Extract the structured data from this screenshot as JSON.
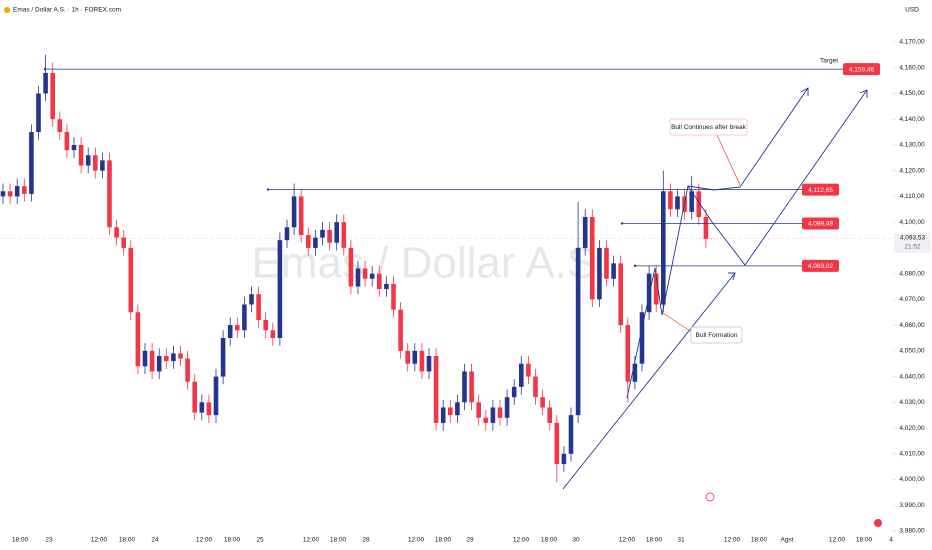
{
  "chart_data": {
    "type": "candlestick",
    "title": "Emas / Dollar A.S.",
    "header": "Emas / Dollar A.S. · 1h · FOREX.com",
    "currency": "USD",
    "up_color": "#24358f",
    "down_color": "#f23645",
    "open": [
      4110,
      4112,
      4110,
      4114,
      4111,
      4135,
      4150,
      4158,
      4140,
      4135,
      4128,
      4130,
      4122,
      4126,
      4120,
      4124,
      4098,
      4094,
      4090,
      4065,
      4044,
      4050,
      4042,
      4048,
      4046,
      4049,
      4047,
      4038,
      4026,
      4030,
      4025,
      4040,
      4055,
      4060,
      4058,
      4068,
      4072,
      4062,
      4058,
      4055,
      4093,
      4098,
      4110,
      4095,
      4090,
      4094,
      4097,
      4092,
      4100,
      4090,
      4075,
      4082,
      4078,
      4080,
      4074,
      4076,
      4066,
      4050,
      4045,
      4050,
      4042,
      4048,
      4022,
      4028,
      4025,
      4030,
      4042,
      4030,
      4024,
      4022,
      4028,
      4024,
      4032,
      4036,
      4045,
      4040,
      4032,
      4028,
      4022,
      4006,
      4010,
      4025,
      4090,
      4102,
      4070,
      4090,
      4078,
      4084,
      4060,
      4038,
      4045,
      4065,
      4080,
      4068,
      4112,
      4105,
      4110,
      4104,
      4112,
      4102
    ],
    "high": [
      4115,
      4115,
      4117,
      4117,
      4138,
      4153,
      4165,
      4162,
      4143,
      4138,
      4133,
      4133,
      4129,
      4129,
      4127,
      4127,
      4101,
      4097,
      4093,
      4068,
      4053,
      4053,
      4051,
      4051,
      4052,
      4052,
      4050,
      4041,
      4033,
      4033,
      4043,
      4058,
      4063,
      4063,
      4071,
      4075,
      4075,
      4065,
      4061,
      4096,
      4101,
      4115,
      4113,
      4098,
      4097,
      4100,
      4100,
      4103,
      4103,
      4093,
      4085,
      4085,
      4083,
      4083,
      4079,
      4079,
      4069,
      4053,
      4053,
      4053,
      4051,
      4051,
      4031,
      4031,
      4033,
      4045,
      4045,
      4033,
      4027,
      4031,
      4031,
      4035,
      4039,
      4048,
      4048,
      4043,
      4035,
      4031,
      4025,
      4013,
      4028,
      4108,
      4105,
      4105,
      4093,
      4093,
      4087,
      4087,
      4063,
      4048,
      4068,
      4083,
      4083,
      4120,
      4115,
      4113,
      4113,
      4118,
      4115,
      4105
    ],
    "low": [
      4107,
      4107,
      4107,
      4108,
      4108,
      4132,
      4147,
      4137,
      4132,
      4125,
      4125,
      4119,
      4119,
      4117,
      4117,
      4095,
      4091,
      4087,
      4062,
      4041,
      4041,
      4039,
      4039,
      4043,
      4043,
      4044,
      4035,
      4023,
      4023,
      4022,
      4022,
      4037,
      4052,
      4055,
      4055,
      4065,
      4059,
      4055,
      4052,
      4052,
      4090,
      4095,
      4092,
      4087,
      4087,
      4091,
      4089,
      4089,
      4087,
      4072,
      4072,
      4075,
      4075,
      4071,
      4071,
      4063,
      4047,
      4042,
      4042,
      4039,
      4039,
      4019,
      4019,
      4022,
      4022,
      4027,
      4027,
      4021,
      4019,
      4019,
      4021,
      4021,
      4029,
      4033,
      4037,
      4029,
      4025,
      4019,
      3999,
      4003,
      4007,
      4022,
      4087,
      4067,
      4067,
      4075,
      4075,
      4057,
      4030,
      4035,
      4042,
      4062,
      4065,
      4065,
      4102,
      4102,
      4101,
      4101,
      4099,
      4090
    ],
    "close": [
      4112,
      4110,
      4114,
      4111,
      4135,
      4150,
      4158,
      4140,
      4135,
      4128,
      4130,
      4122,
      4126,
      4120,
      4124,
      4098,
      4094,
      4090,
      4065,
      4044,
      4050,
      4042,
      4048,
      4046,
      4049,
      4047,
      4038,
      4026,
      4030,
      4025,
      4040,
      4055,
      4060,
      4058,
      4068,
      4072,
      4062,
      4058,
      4055,
      4093,
      4098,
      4110,
      4095,
      4090,
      4094,
      4097,
      4092,
      4100,
      4090,
      4075,
      4082,
      4078,
      4080,
      4074,
      4076,
      4066,
      4050,
      4045,
      4050,
      4042,
      4048,
      4022,
      4028,
      4025,
      4030,
      4042,
      4030,
      4024,
      4022,
      4028,
      4024,
      4032,
      4036,
      4045,
      4040,
      4032,
      4028,
      4022,
      4006,
      4010,
      4025,
      4090,
      4102,
      4070,
      4090,
      4078,
      4084,
      4060,
      4038,
      4045,
      4065,
      4080,
      4068,
      4112,
      4105,
      4110,
      4104,
      4112,
      4102,
      4093.53
    ],
    "x_labels": [
      "18:00",
      "23",
      "12:00",
      "18:00",
      "24",
      "12:00",
      "18:00",
      "25",
      "12:00",
      "18:00",
      "28",
      "12:00",
      "18:00",
      "29",
      "12:00",
      "18:00",
      "30",
      "12:00",
      "18:00",
      "31",
      "12:00",
      "18:00",
      "Agst",
      "12:00",
      "18:00",
      "4"
    ],
    "ylim": [
      3980,
      4170
    ],
    "yticks": [
      {
        "value": 3980,
        "label": "3,980,00"
      },
      {
        "value": 3990,
        "label": "3,990,00"
      },
      {
        "value": 4000,
        "label": "4,000,00"
      },
      {
        "value": 4010,
        "label": "4,010,00"
      },
      {
        "value": 4020,
        "label": "4,020,00"
      },
      {
        "value": 4030,
        "label": "4,030,00"
      },
      {
        "value": 4040,
        "label": "4,040,00"
      },
      {
        "value": 4050,
        "label": "4,050,00"
      },
      {
        "value": 4060,
        "label": "4,060,00"
      },
      {
        "value": 4070,
        "label": "4,070,00"
      },
      {
        "value": 4080,
        "label": "4,080,00"
      },
      {
        "value": 4090,
        "label": "4,090,00"
      },
      {
        "value": 4100,
        "label": "4,100,00"
      },
      {
        "value": 4110,
        "label": "4,110,00"
      },
      {
        "value": 4120,
        "label": "4,120,00"
      },
      {
        "value": 4130,
        "label": "4,130,00"
      },
      {
        "value": 4140,
        "label": "4,140,00"
      },
      {
        "value": 4150,
        "label": "4,150,00"
      },
      {
        "value": 4160,
        "label": "4,160,00"
      },
      {
        "value": 4170,
        "label": "4,170,00"
      }
    ],
    "levels": [
      {
        "value": 4159.46,
        "label": "4,159,46"
      },
      {
        "value": 4112.65,
        "label": "4,112,65"
      },
      {
        "value": 4099.49,
        "label": "4,099,49"
      },
      {
        "value": 4083.02,
        "label": "4,083,02"
      }
    ],
    "last_price": {
      "value": 4093.53,
      "label": "4,093,53"
    },
    "countdown": "21:52",
    "annotations": [
      "Target",
      "Bull Continues after break",
      "Bull Formation"
    ]
  }
}
